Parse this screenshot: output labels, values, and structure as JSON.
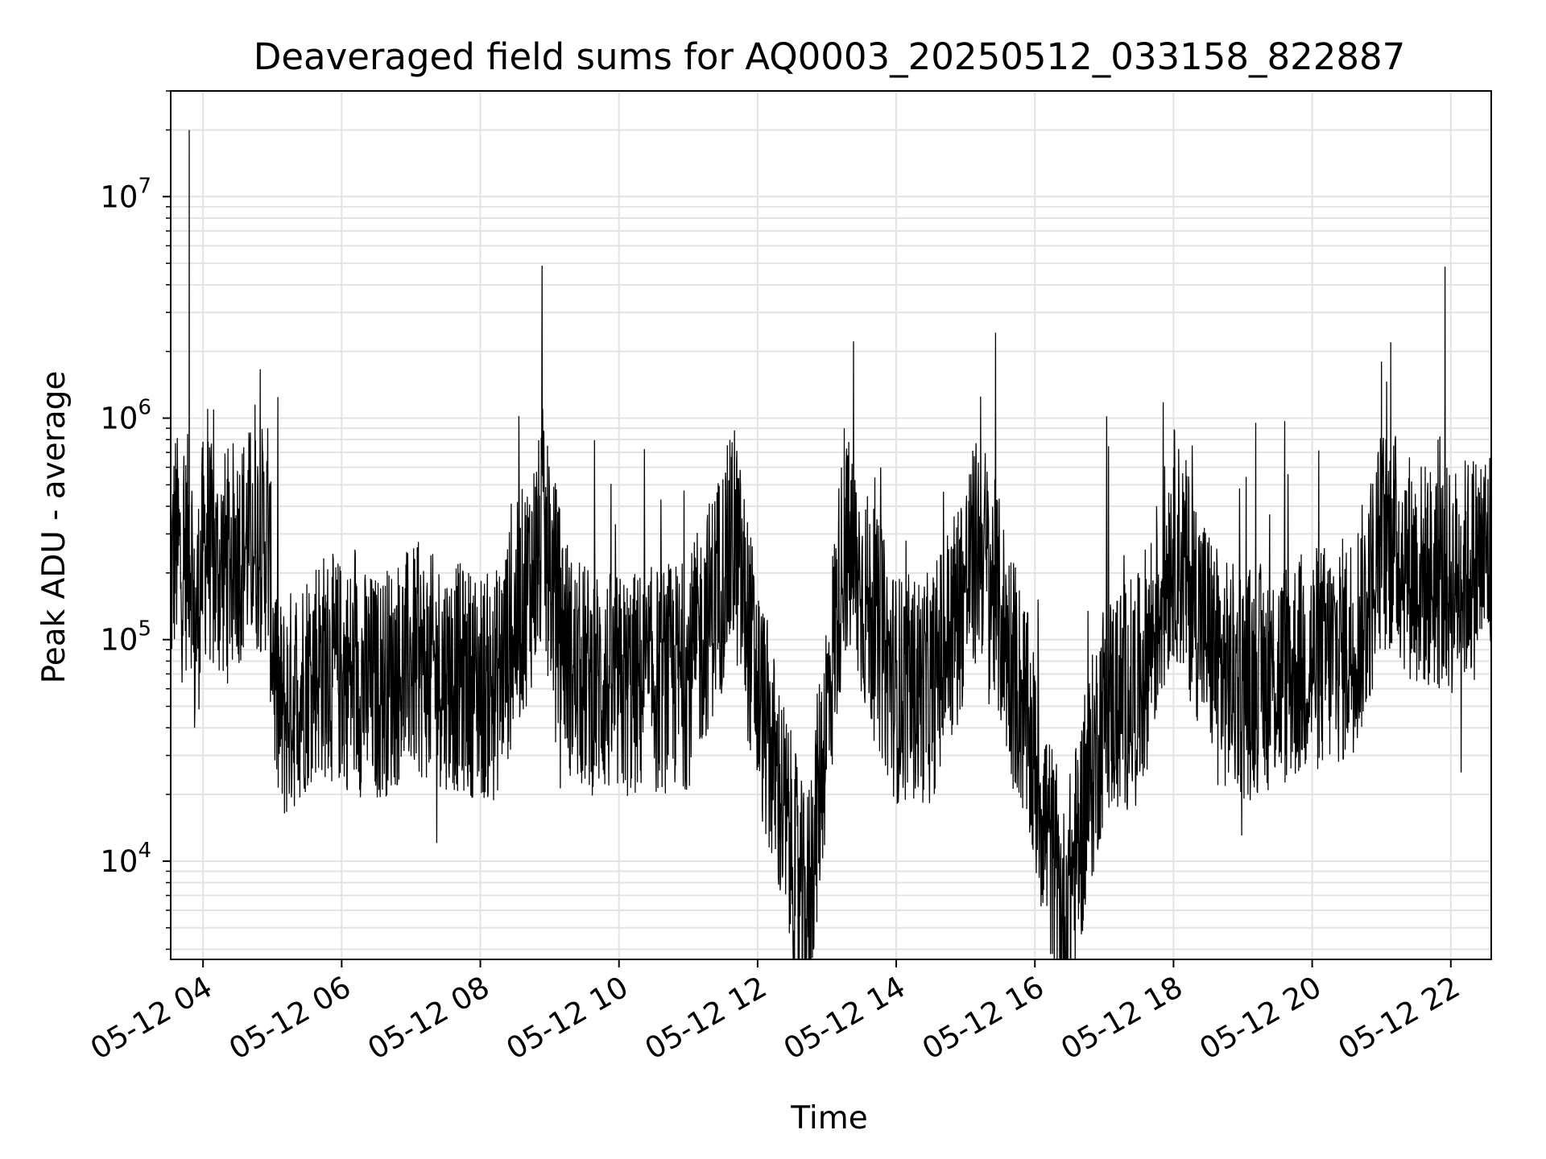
{
  "chart_data": {
    "type": "line",
    "title": "Deaveraged field sums for AQ0003_20250512_033158_822887",
    "xlabel": "Time",
    "ylabel": "Peak ADU - average",
    "yscale": "log",
    "ylim": [
      3600,
      30000000
    ],
    "xlim": [
      "2025-05-12 03:32",
      "2025-05-12 22:35"
    ],
    "grid": true,
    "line_color": "#000000",
    "x_ticks": [
      "05-12 04",
      "05-12 06",
      "05-12 08",
      "05-12 10",
      "05-12 12",
      "05-12 14",
      "05-12 16",
      "05-12 18",
      "05-12 20",
      "05-12 22"
    ],
    "y_ticks": [
      {
        "base": "10",
        "exp": "4"
      },
      {
        "base": "10",
        "exp": "5"
      },
      {
        "base": "10",
        "exp": "6"
      },
      {
        "base": "10",
        "exp": "7"
      }
    ],
    "series": [
      {
        "x": [
          "2025-05-12 03:32",
          "2025-05-12 03:36",
          "2025-05-12 03:43",
          "2025-05-12 03:48",
          "2025-05-12 03:51",
          "2025-05-12 03:52",
          "2025-05-12 04:00",
          "2025-05-12 04:04",
          "2025-05-12 04:10",
          "2025-05-12 04:40",
          "2025-05-12 04:45",
          "2025-05-12 04:56",
          "2025-05-12 05:03",
          "2025-05-12 05:08",
          "2025-05-12 05:38",
          "2025-05-12 06:01",
          "2025-05-12 06:30",
          "2025-05-12 07:00",
          "2025-05-12 07:30",
          "2025-05-12 08:12",
          "2025-05-12 08:54",
          "2025-05-12 09:20",
          "2025-05-12 10:00",
          "2025-05-12 10:30",
          "2025-05-12 11:00",
          "2025-05-12 11:40",
          "2025-05-12 12:00",
          "2025-05-12 12:42",
          "2025-05-12 13:15",
          "2025-05-12 14:00",
          "2025-05-12 14:30",
          "2025-05-12 15:13",
          "2025-05-12 15:50",
          "2025-05-12 16:25",
          "2025-05-12 17:00",
          "2025-05-12 17:30",
          "2025-05-12 18:00",
          "2025-05-12 18:42",
          "2025-05-12 19:00",
          "2025-05-12 19:35",
          "2025-05-12 20:00",
          "2025-05-12 20:30",
          "2025-05-12 20:45",
          "2025-05-12 21:00",
          "2025-05-12 21:08",
          "2025-05-12 21:30",
          "2025-05-12 22:00",
          "2025-05-12 22:35"
        ],
        "y": [
          180000,
          300000,
          200000,
          20000000,
          220000,
          90000,
          250000,
          1100000,
          200000,
          300000,
          1150000,
          900000,
          60000,
          45000,
          80000,
          70000,
          60000,
          80000,
          70000,
          60000,
          1100000,
          70000,
          60000,
          65000,
          70000,
          880000,
          60000,
          5500,
          900000,
          60000,
          60000,
          1250000,
          50000,
          5500,
          50000,
          60000,
          600000,
          70000,
          65000,
          70000,
          80000,
          90000,
          130000,
          1800000,
          2200000,
          200000,
          180000,
          250000
        ]
      }
    ]
  }
}
